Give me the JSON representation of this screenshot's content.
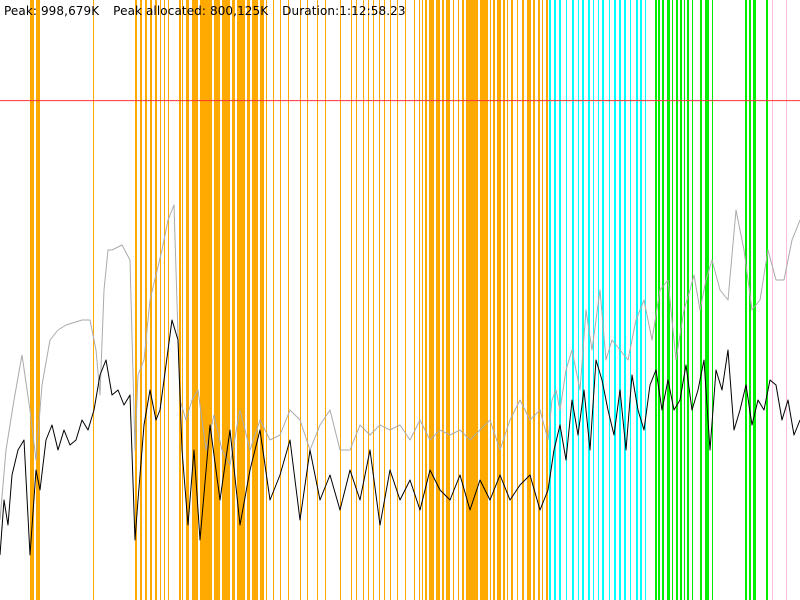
{
  "header": {
    "peak": "Peak: 998,679K",
    "peak_allocated": "Peak allocated: 800,125K",
    "duration": "Duration:1:12:58.23"
  },
  "chart_data": {
    "type": "line",
    "title": "",
    "xlabel": "",
    "ylabel": "",
    "xlim": [
      0,
      800
    ],
    "ylim": [
      0,
      1200000
    ],
    "grid": false,
    "reference_line": {
      "y": 998679,
      "color": "#ff3333"
    },
    "colors": {
      "gc_minor": "#ffaa00",
      "gc_major": "#00ffff",
      "gc_full": "#00ee00",
      "gc_other": "#ffc0e0",
      "heap": "#aaaaaa",
      "used": "#000000"
    },
    "event_bands": [
      {
        "x": 30,
        "w": 4,
        "kind": "gc_minor"
      },
      {
        "x": 36,
        "w": 4,
        "kind": "gc_minor"
      },
      {
        "x": 93,
        "w": 1,
        "kind": "gc_minor"
      },
      {
        "x": 135,
        "w": 2,
        "kind": "gc_minor"
      },
      {
        "x": 140,
        "w": 2,
        "kind": "gc_minor"
      },
      {
        "x": 145,
        "w": 2,
        "kind": "gc_minor"
      },
      {
        "x": 150,
        "w": 2,
        "kind": "gc_minor"
      },
      {
        "x": 155,
        "w": 2,
        "kind": "gc_minor"
      },
      {
        "x": 160,
        "w": 1,
        "kind": "gc_minor"
      },
      {
        "x": 164,
        "w": 1,
        "kind": "gc_minor"
      },
      {
        "x": 168,
        "w": 1,
        "kind": "gc_minor"
      },
      {
        "x": 179,
        "w": 2,
        "kind": "gc_minor"
      },
      {
        "x": 182,
        "w": 1,
        "kind": "gc_minor"
      },
      {
        "x": 186,
        "w": 3,
        "kind": "gc_minor"
      },
      {
        "x": 192,
        "w": 6,
        "kind": "gc_minor"
      },
      {
        "x": 200,
        "w": 12,
        "kind": "gc_minor"
      },
      {
        "x": 214,
        "w": 6,
        "kind": "gc_minor"
      },
      {
        "x": 222,
        "w": 8,
        "kind": "gc_minor"
      },
      {
        "x": 232,
        "w": 3,
        "kind": "gc_minor"
      },
      {
        "x": 237,
        "w": 8,
        "kind": "gc_minor"
      },
      {
        "x": 247,
        "w": 3,
        "kind": "gc_minor"
      },
      {
        "x": 252,
        "w": 6,
        "kind": "gc_minor"
      },
      {
        "x": 260,
        "w": 4,
        "kind": "gc_minor"
      },
      {
        "x": 266,
        "w": 1,
        "kind": "gc_minor"
      },
      {
        "x": 273,
        "w": 1,
        "kind": "gc_minor"
      },
      {
        "x": 280,
        "w": 1,
        "kind": "gc_minor"
      },
      {
        "x": 288,
        "w": 1,
        "kind": "gc_minor"
      },
      {
        "x": 300,
        "w": 1,
        "kind": "gc_minor"
      },
      {
        "x": 307,
        "w": 1,
        "kind": "gc_minor"
      },
      {
        "x": 317,
        "w": 1,
        "kind": "gc_minor"
      },
      {
        "x": 325,
        "w": 1,
        "kind": "gc_minor"
      },
      {
        "x": 340,
        "w": 1,
        "kind": "gc_minor"
      },
      {
        "x": 351,
        "w": 1,
        "kind": "gc_minor"
      },
      {
        "x": 356,
        "w": 1,
        "kind": "gc_minor"
      },
      {
        "x": 363,
        "w": 1,
        "kind": "gc_minor"
      },
      {
        "x": 368,
        "w": 1,
        "kind": "gc_minor"
      },
      {
        "x": 373,
        "w": 1,
        "kind": "gc_minor"
      },
      {
        "x": 379,
        "w": 1,
        "kind": "gc_minor"
      },
      {
        "x": 384,
        "w": 1,
        "kind": "gc_minor"
      },
      {
        "x": 390,
        "w": 1,
        "kind": "gc_minor"
      },
      {
        "x": 397,
        "w": 1,
        "kind": "gc_minor"
      },
      {
        "x": 405,
        "w": 1,
        "kind": "gc_minor"
      },
      {
        "x": 414,
        "w": 1,
        "kind": "gc_minor"
      },
      {
        "x": 419,
        "w": 1,
        "kind": "gc_minor"
      },
      {
        "x": 422,
        "w": 1,
        "kind": "gc_minor"
      },
      {
        "x": 425,
        "w": 2,
        "kind": "gc_minor"
      },
      {
        "x": 429,
        "w": 5,
        "kind": "gc_minor"
      },
      {
        "x": 436,
        "w": 4,
        "kind": "gc_minor"
      },
      {
        "x": 442,
        "w": 2,
        "kind": "gc_minor"
      },
      {
        "x": 446,
        "w": 4,
        "kind": "gc_minor"
      },
      {
        "x": 453,
        "w": 1,
        "kind": "gc_minor"
      },
      {
        "x": 458,
        "w": 1,
        "kind": "gc_minor"
      },
      {
        "x": 462,
        "w": 2,
        "kind": "gc_minor"
      },
      {
        "x": 466,
        "w": 12,
        "kind": "gc_minor"
      },
      {
        "x": 480,
        "w": 8,
        "kind": "gc_minor"
      },
      {
        "x": 490,
        "w": 1,
        "kind": "gc_minor"
      },
      {
        "x": 493,
        "w": 2,
        "kind": "gc_minor"
      },
      {
        "x": 497,
        "w": 4,
        "kind": "gc_minor"
      },
      {
        "x": 503,
        "w": 2,
        "kind": "gc_minor"
      },
      {
        "x": 507,
        "w": 1,
        "kind": "gc_minor"
      },
      {
        "x": 511,
        "w": 2,
        "kind": "gc_minor"
      },
      {
        "x": 517,
        "w": 1,
        "kind": "gc_minor"
      },
      {
        "x": 522,
        "w": 2,
        "kind": "gc_minor"
      },
      {
        "x": 527,
        "w": 4,
        "kind": "gc_minor"
      },
      {
        "x": 533,
        "w": 2,
        "kind": "gc_minor"
      },
      {
        "x": 538,
        "w": 2,
        "kind": "gc_minor"
      },
      {
        "x": 542,
        "w": 1,
        "kind": "gc_minor"
      },
      {
        "x": 546,
        "w": 2,
        "kind": "gc_minor"
      },
      {
        "x": 549,
        "w": 2,
        "kind": "gc_major"
      },
      {
        "x": 554,
        "w": 2,
        "kind": "gc_major"
      },
      {
        "x": 559,
        "w": 2,
        "kind": "gc_major"
      },
      {
        "x": 566,
        "w": 1,
        "kind": "gc_major"
      },
      {
        "x": 572,
        "w": 2,
        "kind": "gc_major"
      },
      {
        "x": 578,
        "w": 1,
        "kind": "gc_major"
      },
      {
        "x": 582,
        "w": 2,
        "kind": "gc_major"
      },
      {
        "x": 588,
        "w": 2,
        "kind": "gc_major"
      },
      {
        "x": 593,
        "w": 1,
        "kind": "gc_major"
      },
      {
        "x": 598,
        "w": 1,
        "kind": "gc_major"
      },
      {
        "x": 602,
        "w": 2,
        "kind": "gc_major"
      },
      {
        "x": 609,
        "w": 1,
        "kind": "gc_major"
      },
      {
        "x": 614,
        "w": 2,
        "kind": "gc_major"
      },
      {
        "x": 619,
        "w": 2,
        "kind": "gc_major"
      },
      {
        "x": 624,
        "w": 2,
        "kind": "gc_major"
      },
      {
        "x": 630,
        "w": 1,
        "kind": "gc_major"
      },
      {
        "x": 636,
        "w": 2,
        "kind": "gc_major"
      },
      {
        "x": 640,
        "w": 2,
        "kind": "gc_major"
      },
      {
        "x": 645,
        "w": 1,
        "kind": "gc_major"
      },
      {
        "x": 655,
        "w": 2,
        "kind": "gc_full"
      },
      {
        "x": 658,
        "w": 2,
        "kind": "gc_full"
      },
      {
        "x": 662,
        "w": 2,
        "kind": "gc_full"
      },
      {
        "x": 667,
        "w": 3,
        "kind": "gc_full"
      },
      {
        "x": 672,
        "w": 1,
        "kind": "gc_full"
      },
      {
        "x": 676,
        "w": 2,
        "kind": "gc_full"
      },
      {
        "x": 680,
        "w": 2,
        "kind": "gc_full"
      },
      {
        "x": 684,
        "w": 1,
        "kind": "gc_full"
      },
      {
        "x": 687,
        "w": 2,
        "kind": "gc_full"
      },
      {
        "x": 692,
        "w": 1,
        "kind": "gc_full"
      },
      {
        "x": 700,
        "w": 2,
        "kind": "gc_full"
      },
      {
        "x": 705,
        "w": 4,
        "kind": "gc_full"
      },
      {
        "x": 712,
        "w": 1,
        "kind": "gc_full"
      },
      {
        "x": 745,
        "w": 2,
        "kind": "gc_full"
      },
      {
        "x": 749,
        "w": 2,
        "kind": "gc_full"
      },
      {
        "x": 753,
        "w": 3,
        "kind": "gc_full"
      },
      {
        "x": 766,
        "w": 2,
        "kind": "gc_full"
      },
      {
        "x": 772,
        "w": 1,
        "kind": "gc_other"
      },
      {
        "x": 786,
        "w": 1,
        "kind": "gc_other"
      }
    ],
    "series": [
      {
        "role": "heap",
        "color": "#aaaaaa",
        "x": [
          0,
          6,
          14,
          22,
          30,
          36,
          42,
          50,
          58,
          66,
          74,
          82,
          90,
          96,
          100,
          104,
          108,
          112,
          122,
          130,
          135,
          138,
          144,
          150,
          156,
          162,
          168,
          174,
          180,
          186,
          192,
          198,
          206,
          214,
          222,
          230,
          240,
          250,
          260,
          270,
          280,
          290,
          300,
          310,
          320,
          330,
          340,
          350,
          360,
          370,
          380,
          390,
          400,
          410,
          420,
          430,
          440,
          450,
          460,
          470,
          480,
          490,
          500,
          510,
          520,
          530,
          540,
          548,
          552,
          556,
          560,
          566,
          572,
          580,
          586,
          592,
          600,
          606,
          612,
          620,
          628,
          636,
          644,
          652,
          660,
          668,
          676,
          684,
          690,
          694,
          700,
          706,
          712,
          720,
          728,
          736,
          744,
          752,
          760,
          768,
          776,
          784,
          792,
          800
        ],
        "y": [
          160000,
          300000,
          400000,
          490000,
          380000,
          280000,
          430000,
          520000,
          540000,
          550000,
          555000,
          560000,
          560000,
          500000,
          410000,
          620000,
          700000,
          700000,
          710000,
          680000,
          300000,
          450000,
          480000,
          600000,
          650000,
          700000,
          760000,
          790000,
          400000,
          360000,
          400000,
          420000,
          300000,
          370000,
          300000,
          270000,
          380000,
          300000,
          360000,
          320000,
          330000,
          380000,
          360000,
          300000,
          350000,
          380000,
          300000,
          300000,
          350000,
          330000,
          350000,
          340000,
          350000,
          320000,
          360000,
          320000,
          340000,
          330000,
          340000,
          320000,
          340000,
          360000,
          300000,
          360000,
          400000,
          360000,
          380000,
          320000,
          400000,
          420000,
          380000,
          460000,
          500000,
          420000,
          580000,
          500000,
          620000,
          480000,
          520000,
          500000,
          480000,
          560000,
          600000,
          520000,
          620000,
          640000,
          480000,
          580000,
          620000,
          650000,
          580000,
          640000,
          680000,
          620000,
          600000,
          780000,
          700000,
          580000,
          600000,
          700000,
          640000,
          640000,
          720000,
          760000
        ]
      },
      {
        "role": "used",
        "color": "#000000",
        "x": [
          0,
          4,
          8,
          12,
          18,
          24,
          30,
          36,
          40,
          46,
          52,
          58,
          64,
          70,
          76,
          82,
          88,
          94,
          100,
          106,
          112,
          118,
          124,
          130,
          135,
          138,
          144,
          150,
          156,
          160,
          166,
          172,
          178,
          182,
          188,
          194,
          200,
          210,
          220,
          230,
          240,
          250,
          260,
          270,
          280,
          290,
          300,
          310,
          320,
          330,
          340,
          350,
          360,
          370,
          380,
          390,
          400,
          410,
          420,
          430,
          440,
          450,
          460,
          470,
          480,
          490,
          500,
          510,
          520,
          530,
          540,
          548,
          554,
          560,
          566,
          572,
          578,
          584,
          590,
          596,
          602,
          608,
          614,
          620,
          626,
          632,
          638,
          644,
          650,
          656,
          662,
          668,
          674,
          680,
          686,
          692,
          698,
          704,
          710,
          716,
          722,
          728,
          734,
          740,
          746,
          752,
          758,
          764,
          770,
          776,
          782,
          788,
          794,
          800
        ],
        "y": [
          90000,
          200000,
          150000,
          250000,
          300000,
          320000,
          90000,
          260000,
          220000,
          320000,
          350000,
          300000,
          340000,
          310000,
          320000,
          360000,
          340000,
          380000,
          450000,
          480000,
          410000,
          420000,
          390000,
          410000,
          120000,
          200000,
          350000,
          420000,
          360000,
          380000,
          470000,
          560000,
          520000,
          300000,
          150000,
          300000,
          120000,
          350000,
          200000,
          340000,
          150000,
          260000,
          340000,
          200000,
          250000,
          320000,
          160000,
          300000,
          200000,
          250000,
          180000,
          260000,
          200000,
          300000,
          150000,
          260000,
          200000,
          240000,
          180000,
          260000,
          220000,
          200000,
          250000,
          180000,
          240000,
          200000,
          250000,
          200000,
          230000,
          250000,
          180000,
          220000,
          300000,
          350000,
          280000,
          400000,
          330000,
          420000,
          300000,
          480000,
          440000,
          380000,
          330000,
          420000,
          300000,
          450000,
          380000,
          340000,
          430000,
          460000,
          380000,
          440000,
          380000,
          400000,
          470000,
          380000,
          420000,
          480000,
          300000,
          460000,
          420000,
          500000,
          340000,
          380000,
          430000,
          350000,
          400000,
          380000,
          440000,
          430000,
          360000,
          400000,
          330000,
          360000
        ]
      }
    ]
  }
}
